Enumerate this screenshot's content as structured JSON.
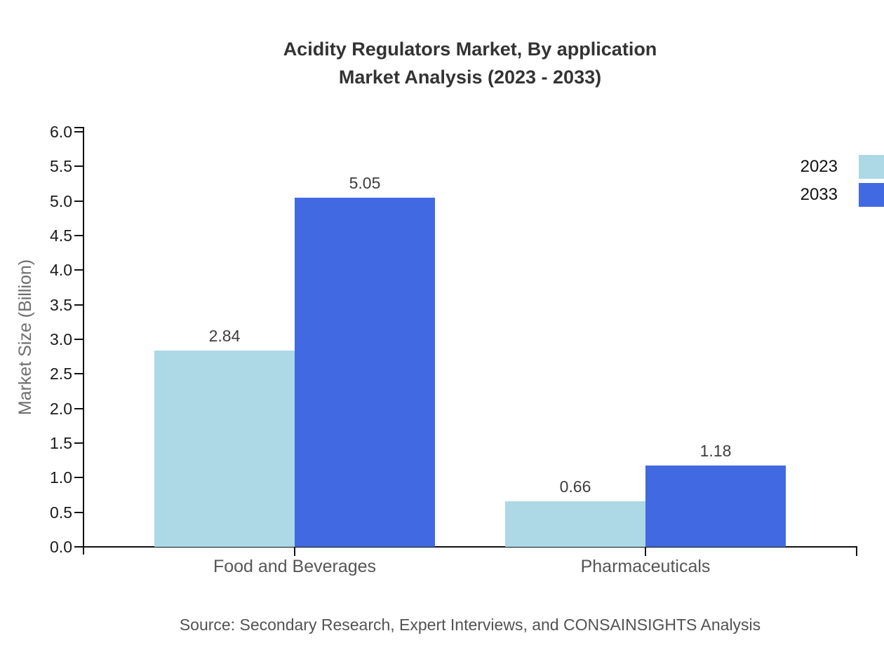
{
  "chart_data": {
    "type": "bar",
    "title": "Acidity Regulators Market, By application",
    "subtitle": "Market Analysis (2023 - 2033)",
    "categories": [
      "Food and Beverages",
      "Pharmaceuticals"
    ],
    "series": [
      {
        "name": "2023",
        "color": "#add8e6",
        "values": [
          2.84,
          0.66
        ]
      },
      {
        "name": "2033",
        "color": "#4169e1",
        "values": [
          5.05,
          1.18
        ]
      }
    ],
    "xlabel": "",
    "ylabel": "Market Size (Billion)",
    "ylim": [
      0,
      6
    ],
    "ytick_labels": [
      "0.0",
      "0.5",
      "1.0",
      "1.5",
      "2.0",
      "2.5",
      "3.0",
      "3.5",
      "4.0",
      "4.5",
      "5.0",
      "5.5",
      "6.0"
    ],
    "value_label_format": "2-decimals",
    "legend_position": "top-right",
    "grid": false,
    "source": "Source: Secondary Research, Expert Interviews, and CONSAINSIGHTS Analysis"
  },
  "colors": {
    "series_2023": "#add8e6",
    "series_2033": "#4169e1",
    "axis": "#111111",
    "title_text": "#333333",
    "value_label_text": "#3d3d3d",
    "tick_label_text": "#1a1a1a",
    "category_label_text": "#565656",
    "ylabel_text": "#6e6e6e",
    "source_text": "#525252"
  }
}
